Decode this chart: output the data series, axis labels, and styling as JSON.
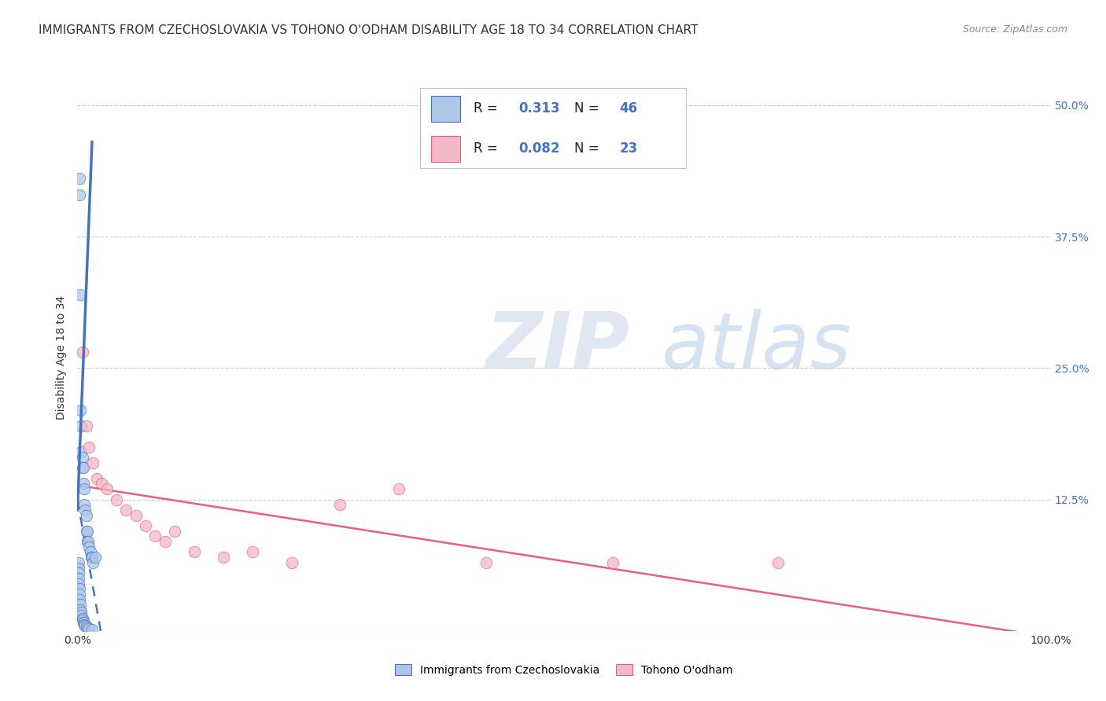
{
  "title": "IMMIGRANTS FROM CZECHOSLOVAKIA VS TOHONO O'ODHAM DISABILITY AGE 18 TO 34 CORRELATION CHART",
  "source": "Source: ZipAtlas.com",
  "ylabel": "Disability Age 18 to 34",
  "xlim": [
    0.0,
    1.0
  ],
  "ylim": [
    0.0,
    0.52
  ],
  "yticks": [
    0.0,
    0.125,
    0.25,
    0.375,
    0.5
  ],
  "yticklabels": [
    "",
    "12.5%",
    "25.0%",
    "37.5%",
    "50.0%"
  ],
  "xtick_positions": [
    0.0,
    1.0
  ],
  "xtick_labels": [
    "0.0%",
    "100.0%"
  ],
  "blue_R": "0.313",
  "blue_N": "46",
  "pink_R": "0.082",
  "pink_N": "23",
  "blue_color": "#aec6e8",
  "pink_color": "#f5b8c8",
  "trendline_blue_color": "#4472c4",
  "trendline_pink_color": "#e8607a",
  "watermark_ZIP": "ZIP",
  "watermark_atlas": "atlas",
  "legend_label_blue": "Immigrants from Czechoslovakia",
  "legend_label_pink": "Tohono O'odham",
  "blue_scatter_x": [
    0.002,
    0.002,
    0.003,
    0.003,
    0.004,
    0.004,
    0.005,
    0.005,
    0.006,
    0.006,
    0.007,
    0.007,
    0.008,
    0.009,
    0.009,
    0.01,
    0.01,
    0.011,
    0.012,
    0.013,
    0.014,
    0.015,
    0.016,
    0.018,
    0.001,
    0.001,
    0.001,
    0.001,
    0.001,
    0.002,
    0.002,
    0.002,
    0.003,
    0.003,
    0.004,
    0.004,
    0.005,
    0.005,
    0.006,
    0.007,
    0.007,
    0.008,
    0.009,
    0.01,
    0.012,
    0.015
  ],
  "blue_scatter_y": [
    0.43,
    0.415,
    0.32,
    0.21,
    0.195,
    0.17,
    0.165,
    0.155,
    0.155,
    0.14,
    0.135,
    0.12,
    0.115,
    0.11,
    0.095,
    0.095,
    0.085,
    0.085,
    0.08,
    0.075,
    0.07,
    0.07,
    0.065,
    0.07,
    0.065,
    0.06,
    0.055,
    0.05,
    0.045,
    0.04,
    0.035,
    0.03,
    0.025,
    0.02,
    0.018,
    0.015,
    0.012,
    0.01,
    0.008,
    0.008,
    0.006,
    0.005,
    0.004,
    0.003,
    0.002,
    0.001
  ],
  "pink_scatter_x": [
    0.005,
    0.009,
    0.012,
    0.016,
    0.02,
    0.025,
    0.03,
    0.04,
    0.05,
    0.06,
    0.07,
    0.08,
    0.09,
    0.1,
    0.12,
    0.15,
    0.18,
    0.22,
    0.27,
    0.33,
    0.42,
    0.55,
    0.72
  ],
  "pink_scatter_y": [
    0.265,
    0.195,
    0.175,
    0.16,
    0.145,
    0.14,
    0.135,
    0.125,
    0.115,
    0.11,
    0.1,
    0.09,
    0.085,
    0.095,
    0.075,
    0.07,
    0.075,
    0.065,
    0.12,
    0.135,
    0.065,
    0.065,
    0.065
  ],
  "background_color": "#ffffff",
  "grid_color": "#cccccc",
  "title_fontsize": 11,
  "axis_label_fontsize": 10,
  "tick_fontsize": 10,
  "tick_color_right": "#4472c4",
  "solid_blue_line": [
    [
      0.0,
      0.015
    ],
    [
      0.115,
      0.465
    ]
  ],
  "dashed_blue_line_start_x": 0.001,
  "dashed_blue_line_end_x": 0.22
}
